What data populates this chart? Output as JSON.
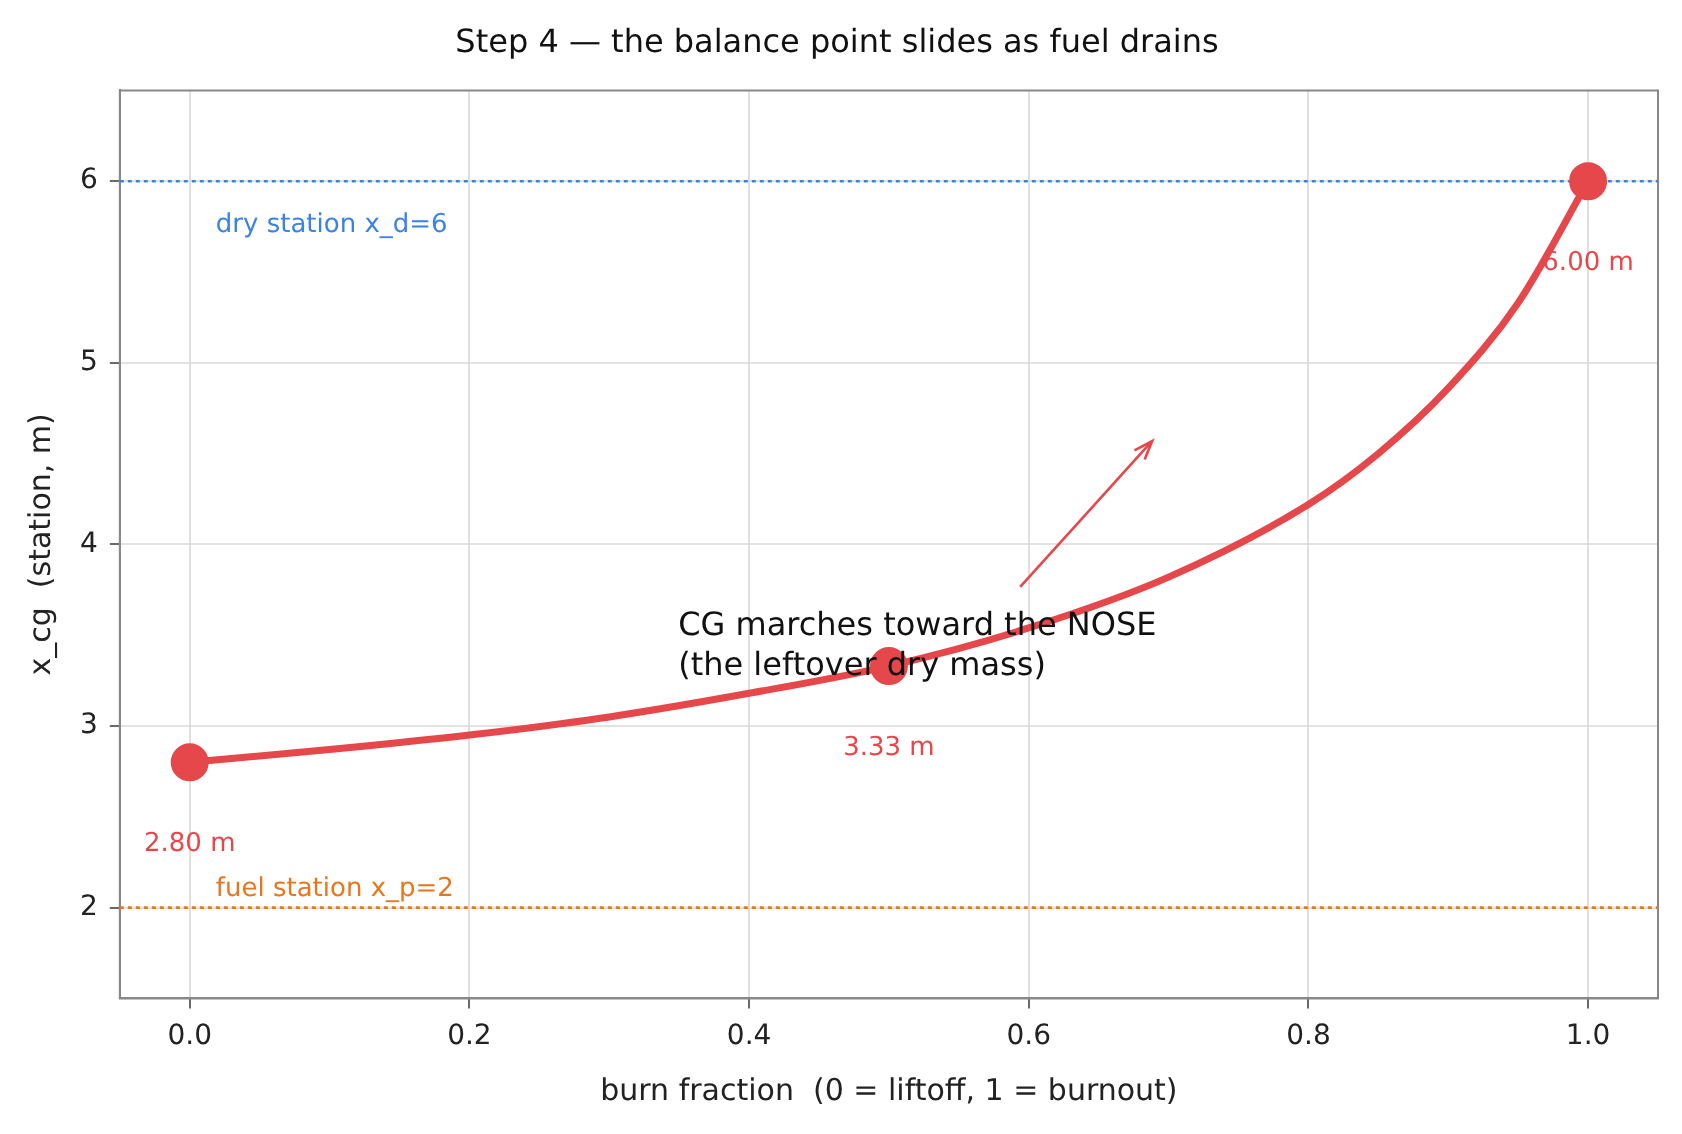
{
  "chart_data": {
    "type": "line",
    "title": "Step 4 — the balance point slides as fuel drains",
    "xlabel": "burn fraction  (0 = liftoff, 1 = burnout)",
    "ylabel": "x_cg  (station, m)",
    "xlim": [
      -0.05,
      1.05
    ],
    "xticks": [
      {
        "value": 0,
        "label": "0.0"
      },
      {
        "value": 0.2,
        "label": "0.2"
      },
      {
        "value": 0.4,
        "label": "0.4"
      },
      {
        "value": 0.6,
        "label": "0.6"
      },
      {
        "value": 0.8,
        "label": "0.8"
      },
      {
        "value": 1,
        "label": "1.0"
      }
    ],
    "ylim": [
      1.5,
      6.5
    ],
    "yticks": [
      2,
      3,
      4,
      5,
      6
    ],
    "grid": true,
    "legend": false,
    "series": [
      {
        "color": "#e5474b",
        "marker": "none",
        "line_style": "solid",
        "x": [
          0,
          0.1,
          0.2,
          0.3,
          0.4,
          0.5,
          0.6,
          0.7,
          0.8,
          0.85,
          0.9,
          0.95,
          1.0
        ],
        "values": [
          2.8,
          2.87,
          2.95,
          3.05,
          3.18,
          3.33,
          3.54,
          3.82,
          4.22,
          4.5,
          4.86,
          5.33,
          6.0
        ]
      },
      {
        "type": "scatter",
        "color": "#e5474b",
        "marker": "circle",
        "x": [
          0,
          0.5,
          1.0
        ],
        "values": [
          2.8,
          3.33,
          6.0
        ],
        "value_labels": [
          "2.80 m",
          "3.33 m",
          "6.00 m"
        ]
      }
    ],
    "ref_lines": [
      {
        "axis": "y",
        "value": 6,
        "label": "dry station x_d=6",
        "color": "#3b82e6",
        "line_style": "dotted"
      },
      {
        "axis": "y",
        "value": 2,
        "label": "fuel station x_p=2",
        "color": "#e8761c",
        "line_style": "dotted"
      }
    ],
    "annotations": [
      "CG marches toward the NOSE\n(the leftover dry mass)"
    ]
  }
}
